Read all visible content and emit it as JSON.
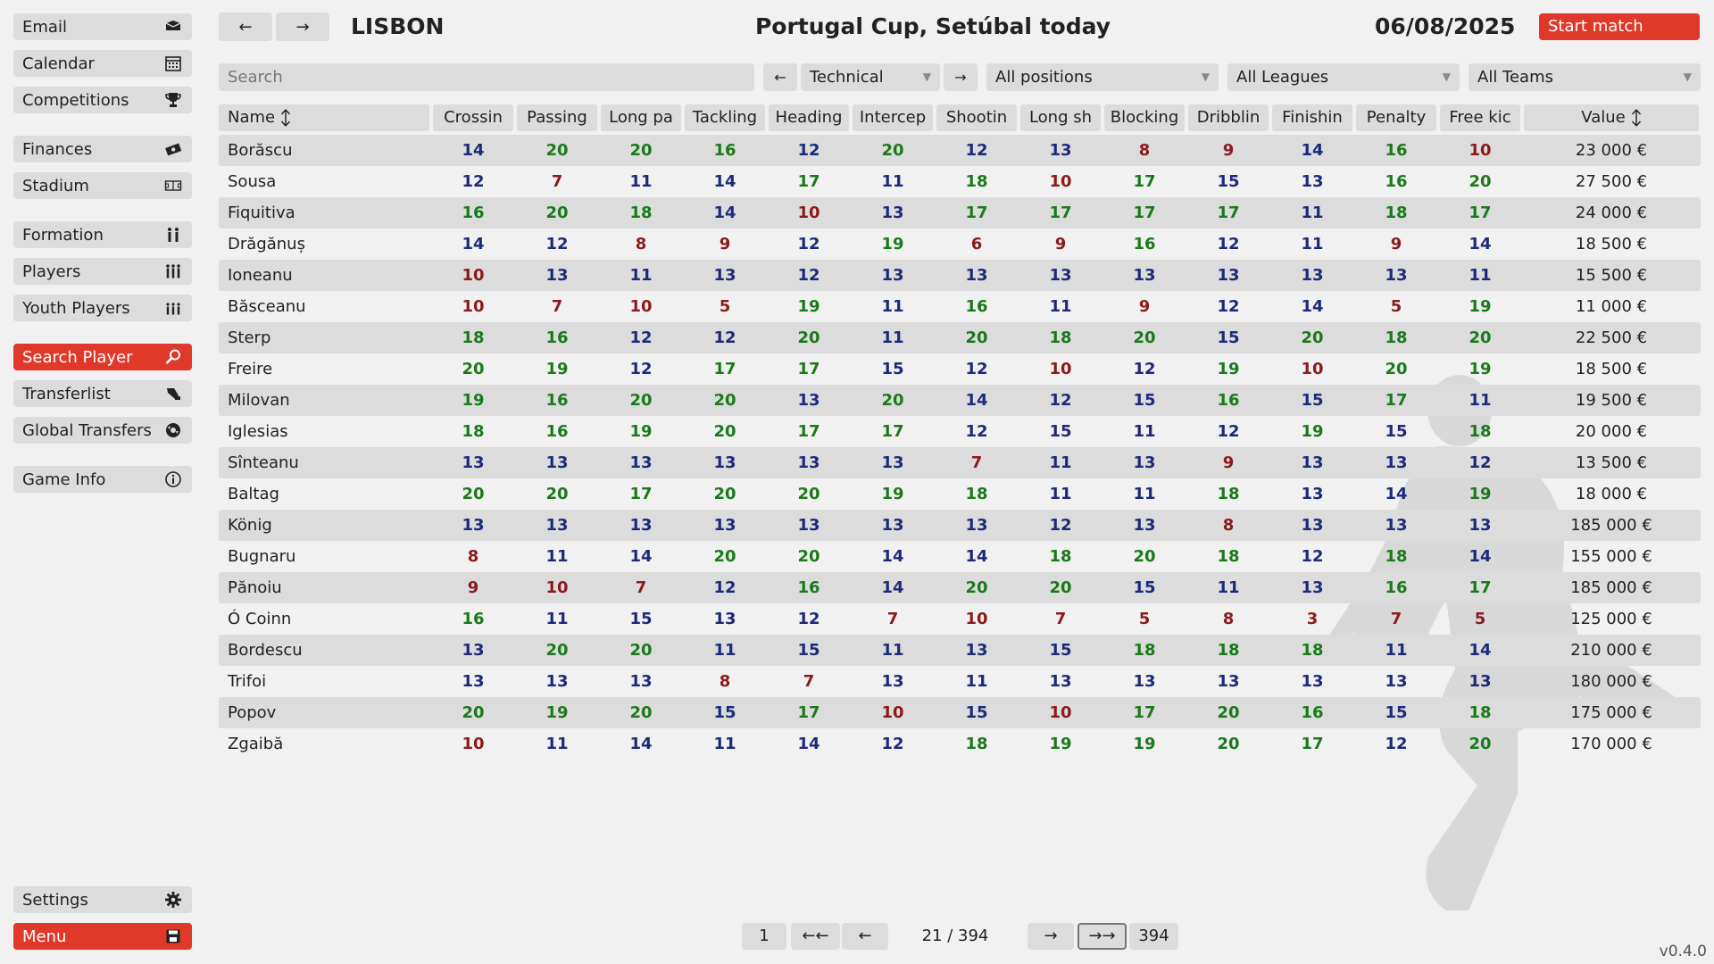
{
  "sidebar": {
    "items": [
      {
        "label": "Email",
        "icon": "email-icon"
      },
      {
        "label": "Calendar",
        "icon": "calendar-icon"
      },
      {
        "label": "Competitions",
        "icon": "trophy-icon"
      },
      {
        "label": "Finances",
        "icon": "money-icon"
      },
      {
        "label": "Stadium",
        "icon": "stadium-icon"
      },
      {
        "label": "Formation",
        "icon": "formation-icon"
      },
      {
        "label": "Players",
        "icon": "players-icon"
      },
      {
        "label": "Youth Players",
        "icon": "youth-players-icon"
      },
      {
        "label": "Search Player",
        "icon": "search-icon",
        "active": true
      },
      {
        "label": "Transferlist",
        "icon": "transfer-icon"
      },
      {
        "label": "Global Transfers",
        "icon": "globe-icon"
      },
      {
        "label": "Game Info",
        "icon": "info-icon"
      }
    ],
    "settings_label": "Settings",
    "menu_label": "Menu"
  },
  "header": {
    "club": "LISBON",
    "title": "Portugal Cup, Setúbal today",
    "date": "06/08/2025",
    "start_match": "Start match",
    "back_arrow": "←",
    "forward_arrow": "→"
  },
  "filters": {
    "search_placeholder": "Search",
    "category": "Technical",
    "positions": "All positions",
    "leagues": "All Leagues",
    "teams": "All Teams",
    "prev": "←",
    "next": "→"
  },
  "table": {
    "columns": [
      "Name",
      "Crossin",
      "Passing",
      "Long pa",
      "Tackling",
      "Heading",
      "Intercep",
      "Shootin",
      "Long sh",
      "Blocking",
      "Dribblin",
      "Finishin",
      "Penalty",
      "Free kic",
      "Value"
    ],
    "rows": [
      {
        "name": "Borăscu",
        "stats": [
          14,
          20,
          20,
          16,
          12,
          20,
          12,
          13,
          8,
          9,
          14,
          16,
          10
        ],
        "value": "23 000 €"
      },
      {
        "name": "Sousa",
        "stats": [
          12,
          7,
          11,
          14,
          17,
          11,
          18,
          10,
          17,
          15,
          13,
          16,
          20
        ],
        "value": "27 500 €"
      },
      {
        "name": "Fiquitiva",
        "stats": [
          16,
          20,
          18,
          14,
          10,
          13,
          17,
          17,
          17,
          17,
          11,
          18,
          17
        ],
        "value": "24 000 €"
      },
      {
        "name": "Drăgănuș",
        "stats": [
          14,
          12,
          8,
          9,
          12,
          19,
          6,
          9,
          16,
          12,
          11,
          9,
          14
        ],
        "value": "18 500 €"
      },
      {
        "name": "Ioneanu",
        "stats": [
          10,
          13,
          11,
          13,
          12,
          13,
          13,
          13,
          13,
          13,
          13,
          13,
          11
        ],
        "value": "15 500 €"
      },
      {
        "name": "Băsceanu",
        "stats": [
          10,
          7,
          10,
          5,
          19,
          11,
          16,
          11,
          9,
          12,
          14,
          5,
          19
        ],
        "value": "11 000 €"
      },
      {
        "name": "Sterp",
        "stats": [
          18,
          16,
          12,
          12,
          20,
          11,
          20,
          18,
          20,
          15,
          20,
          18,
          20
        ],
        "value": "22 500 €"
      },
      {
        "name": "Freire",
        "stats": [
          20,
          19,
          12,
          17,
          17,
          15,
          12,
          10,
          12,
          19,
          10,
          20,
          19
        ],
        "value": "18 500 €"
      },
      {
        "name": "Milovan",
        "stats": [
          19,
          16,
          20,
          20,
          13,
          20,
          14,
          12,
          15,
          16,
          15,
          17,
          11
        ],
        "value": "19 500 €"
      },
      {
        "name": "Iglesias",
        "stats": [
          18,
          16,
          19,
          20,
          17,
          17,
          12,
          15,
          11,
          12,
          19,
          15,
          18
        ],
        "value": "20 000 €"
      },
      {
        "name": "Sînteanu",
        "stats": [
          13,
          13,
          13,
          13,
          13,
          13,
          7,
          11,
          13,
          9,
          13,
          13,
          12
        ],
        "value": "13 500 €"
      },
      {
        "name": "Baltag",
        "stats": [
          20,
          20,
          17,
          20,
          20,
          19,
          18,
          11,
          11,
          18,
          13,
          14,
          19
        ],
        "value": "18 000 €"
      },
      {
        "name": "König",
        "stats": [
          13,
          13,
          13,
          13,
          13,
          13,
          13,
          12,
          13,
          8,
          13,
          13,
          13
        ],
        "value": "185 000 €"
      },
      {
        "name": "Bugnaru",
        "stats": [
          8,
          11,
          14,
          20,
          20,
          14,
          14,
          18,
          20,
          18,
          12,
          18,
          14
        ],
        "value": "155 000 €"
      },
      {
        "name": "Pănoiu",
        "stats": [
          9,
          10,
          7,
          12,
          16,
          14,
          20,
          20,
          15,
          11,
          13,
          16,
          17
        ],
        "value": "185 000 €"
      },
      {
        "name": "Ó Coinn",
        "stats": [
          16,
          11,
          15,
          13,
          12,
          7,
          10,
          7,
          5,
          8,
          3,
          7,
          5
        ],
        "value": "125 000 €"
      },
      {
        "name": "Bordescu",
        "stats": [
          13,
          20,
          20,
          11,
          15,
          11,
          13,
          15,
          18,
          18,
          18,
          11,
          14
        ],
        "value": "210 000 €"
      },
      {
        "name": "Trifoi",
        "stats": [
          13,
          13,
          13,
          8,
          7,
          13,
          11,
          13,
          13,
          13,
          13,
          13,
          13
        ],
        "value": "180 000 €"
      },
      {
        "name": "Popov",
        "stats": [
          20,
          19,
          20,
          15,
          17,
          10,
          15,
          10,
          17,
          20,
          16,
          15,
          18
        ],
        "value": "175 000 €"
      },
      {
        "name": "Zgaibă",
        "stats": [
          10,
          11,
          14,
          11,
          14,
          12,
          18,
          19,
          19,
          20,
          17,
          12,
          20
        ],
        "value": "170 000 €"
      }
    ]
  },
  "pagination": {
    "first": "1",
    "first_jump": "←←",
    "prev": "←",
    "label": "21 / 394",
    "next": "→",
    "last_jump": "→→",
    "last": "394"
  },
  "version": "v0.4.0",
  "colors": {
    "accent": "#e0392a",
    "high": "#1a7a1a",
    "mid": "#1c2a7a",
    "low": "#8b1a1a"
  }
}
